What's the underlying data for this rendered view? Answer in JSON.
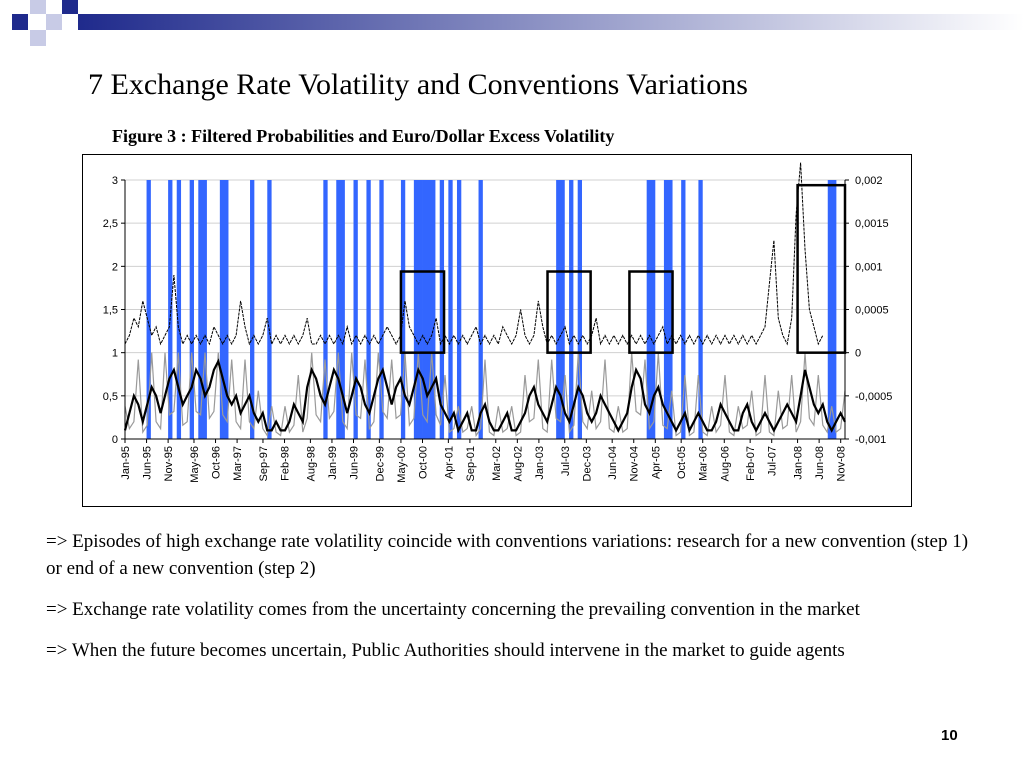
{
  "slide": {
    "title": "7 Exchange Rate Volatility and Conventions Variations",
    "page_number": "10",
    "bullets": [
      "=> Episodes of high exchange rate volatility coincide with conventions variations: research for a new convention (step 1) or end of a new convention (step 2)",
      "=> Exchange rate volatility comes from the uncertainty concerning the prevailing convention in the market",
      "=> When the future becomes uncertain, Public Authorities should intervene in the market to guide agents"
    ]
  },
  "colors": {
    "header_dark": "#1f2a8c",
    "header_light": "#c8cbe6",
    "regime_bar": "#3366ff",
    "probability_line": "#000000",
    "volatility_line": "#000000",
    "grey_series": "#9a9a9a",
    "highlight_box": "#000000"
  },
  "chart_data": {
    "type": "line",
    "title": "Figure 3 : Filtered Probabilities and Euro/Dollar Excess Volatility",
    "x_start": "Jan-95",
    "x_end": "Dec-08",
    "x_tick_labels": [
      "Jan-95",
      "Jun-95",
      "Nov-95",
      "May-96",
      "Oct-96",
      "Mar-97",
      "Sep-97",
      "Feb-98",
      "Aug-98",
      "Jan-99",
      "Jun-99",
      "Dec-99",
      "May-00",
      "Oct-00",
      "Apr-01",
      "Sep-01",
      "Mar-02",
      "Aug-02",
      "Jan-03",
      "Jul-03",
      "Dec-03",
      "Jun-04",
      "Nov-04",
      "Apr-05",
      "Oct-05",
      "Mar-06",
      "Aug-06",
      "Feb-07",
      "Jul-07",
      "Jan-08",
      "Jun-08",
      "Nov-08"
    ],
    "y_left": {
      "ylim": [
        0,
        3
      ],
      "ticks": [
        "0",
        "0,5",
        "1",
        "1,5",
        "2",
        "2,5",
        "3"
      ]
    },
    "y_right": {
      "ylim": [
        -0.001,
        0.002
      ],
      "ticks": [
        "-0,001",
        "-0,0005",
        "0",
        "0,0005",
        "0,001",
        "0,0015",
        "0,002"
      ]
    },
    "regime_periods": [
      [
        "Jun-95",
        "Jul-95"
      ],
      [
        "Nov-95",
        "Dec-95"
      ],
      [
        "Jan-96",
        "Feb-96"
      ],
      [
        "Apr-96",
        "May-96"
      ],
      [
        "Jun-96",
        "Aug-96"
      ],
      [
        "Nov-96",
        "Jan-97"
      ],
      [
        "Jun-97",
        "Jul-97"
      ],
      [
        "Oct-97",
        "Nov-97"
      ],
      [
        "Nov-98",
        "Dec-98"
      ],
      [
        "Feb-99",
        "Apr-99"
      ],
      [
        "Jun-99",
        "Jul-99"
      ],
      [
        "Sep-99",
        "Oct-99"
      ],
      [
        "Dec-99",
        "Jan-00"
      ],
      [
        "May-00",
        "Jun-00"
      ],
      [
        "Aug-00",
        "Oct-00"
      ],
      [
        "Oct-00",
        "Jan-01"
      ],
      [
        "Feb-01",
        "Mar-01"
      ],
      [
        "Apr-01",
        "May-01"
      ],
      [
        "Jun-01",
        "Jul-01"
      ],
      [
        "Nov-01",
        "Dec-01"
      ],
      [
        "May-03",
        "Jul-03"
      ],
      [
        "Aug-03",
        "Sep-03"
      ],
      [
        "Oct-03",
        "Nov-03"
      ],
      [
        "Feb-05",
        "Apr-05"
      ],
      [
        "Jun-05",
        "Aug-05"
      ],
      [
        "Oct-05",
        "Nov-05"
      ],
      [
        "Feb-06",
        "Mar-06"
      ],
      [
        "Aug-08",
        "Oct-08"
      ]
    ],
    "highlighted_periods": [
      [
        "May-00",
        "Mar-01"
      ],
      [
        "Mar-03",
        "Jan-04"
      ],
      [
        "Oct-04",
        "Aug-05"
      ],
      [
        "Jan-08",
        "Dec-08"
      ]
    ],
    "series": [
      {
        "axis": "left",
        "style": "thick-black",
        "values": [
          0.1,
          0.3,
          0.5,
          0.4,
          0.2,
          0.4,
          0.6,
          0.5,
          0.3,
          0.5,
          0.7,
          0.8,
          0.6,
          0.4,
          0.5,
          0.6,
          0.8,
          0.7,
          0.5,
          0.6,
          0.8,
          0.9,
          0.7,
          0.5,
          0.4,
          0.5,
          0.3,
          0.4,
          0.5,
          0.3,
          0.2,
          0.3,
          0.1,
          0.1,
          0.2,
          0.1,
          0.1,
          0.2,
          0.4,
          0.3,
          0.2,
          0.6,
          0.8,
          0.7,
          0.5,
          0.4,
          0.6,
          0.8,
          0.7,
          0.5,
          0.3,
          0.5,
          0.7,
          0.6,
          0.4,
          0.3,
          0.5,
          0.7,
          0.8,
          0.6,
          0.4,
          0.6,
          0.7,
          0.5,
          0.4,
          0.6,
          0.8,
          0.7,
          0.5,
          0.6,
          0.7,
          0.4,
          0.3,
          0.2,
          0.3,
          0.1,
          0.2,
          0.3,
          0.1,
          0.1,
          0.3,
          0.4,
          0.2,
          0.1,
          0.1,
          0.2,
          0.3,
          0.1,
          0.1,
          0.2,
          0.3,
          0.5,
          0.6,
          0.4,
          0.3,
          0.2,
          0.4,
          0.6,
          0.5,
          0.3,
          0.2,
          0.4,
          0.6,
          0.5,
          0.3,
          0.2,
          0.3,
          0.5,
          0.4,
          0.3,
          0.2,
          0.1,
          0.2,
          0.3,
          0.6,
          0.8,
          0.7,
          0.4,
          0.3,
          0.5,
          0.6,
          0.4,
          0.3,
          0.2,
          0.1,
          0.2,
          0.3,
          0.1,
          0.2,
          0.3,
          0.2,
          0.1,
          0.1,
          0.2,
          0.4,
          0.3,
          0.2,
          0.1,
          0.1,
          0.3,
          0.4,
          0.2,
          0.1,
          0.2,
          0.3,
          0.2,
          0.1,
          0.2,
          0.3,
          0.4,
          0.3,
          0.2,
          0.5,
          0.8,
          0.6,
          0.4,
          0.3,
          0.4,
          0.2,
          0.1,
          0.2,
          0.3,
          0.2
        ]
      },
      {
        "axis": "right",
        "style": "thin-black",
        "values": [
          0.0001,
          0.0002,
          0.0004,
          0.0003,
          0.0006,
          0.0004,
          0.0002,
          0.0003,
          0.0001,
          0.0002,
          0.0003,
          0.0009,
          0.0003,
          0.0001,
          0.0002,
          0.0001,
          0.0002,
          0.0001,
          0.0002,
          0.0001,
          0.0003,
          0.0002,
          0.0001,
          0.0002,
          0.0001,
          0.0002,
          0.0006,
          0.0003,
          0.0001,
          0.0002,
          0.0001,
          0.0002,
          0.0004,
          0.0001,
          0.0002,
          0.0001,
          0.0002,
          0.0001,
          0.0002,
          0.0001,
          0.0002,
          0.0004,
          0.0001,
          0.0001,
          0.0002,
          0.0001,
          0.0002,
          0.0001,
          0.0002,
          0.0001,
          0.0003,
          0.0001,
          0.0002,
          0.0001,
          0.0002,
          0.0001,
          0.0002,
          0.0001,
          0.0002,
          0.0003,
          0.0002,
          0.0001,
          0.0002,
          0.0006,
          0.0003,
          0.0002,
          0.0001,
          0.0002,
          0.0001,
          0.0002,
          0.0004,
          0.0001,
          0.0002,
          0.0001,
          0.0002,
          0.0001,
          0.0002,
          0.0001,
          0.0002,
          0.0003,
          0.0001,
          0.0002,
          0.0001,
          0.0002,
          0.0001,
          0.0003,
          0.0002,
          0.0001,
          0.0002,
          0.0005,
          0.0002,
          0.0001,
          0.0002,
          0.0006,
          0.0003,
          0.0001,
          0.0002,
          0.0001,
          0.0002,
          0.0003,
          0.0001,
          0.0002,
          0.0001,
          0.0002,
          0.0001,
          0.0002,
          0.0004,
          0.0001,
          0.0002,
          0.0001,
          0.0002,
          0.0001,
          0.0002,
          0.0001,
          0.0002,
          0.0001,
          0.0002,
          0.0001,
          0.0002,
          0.0001,
          0.0002,
          0.0003,
          0.0001,
          0.0002,
          0.0001,
          0.0002,
          0.0001,
          0.0002,
          0.0001,
          0.0002,
          0.0001,
          0.0002,
          0.0001,
          0.0002,
          0.0001,
          0.0002,
          0.0001,
          0.0002,
          0.0001,
          0.0002,
          0.0001,
          0.0002,
          0.0001,
          0.0002,
          0.0003,
          0.0008,
          0.0013,
          0.0004,
          0.0002,
          0.0001,
          0.0004,
          0.0016,
          0.0022,
          0.0012,
          0.0005,
          0.0003,
          0.0001,
          0.0002
        ]
      }
    ]
  }
}
